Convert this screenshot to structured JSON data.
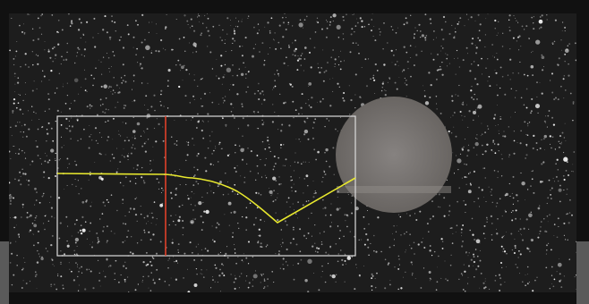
{
  "scene": {
    "description_colors": {
      "background_outer": "#141414",
      "specimen_surface": "#1c1c1c",
      "speckle": "#e6e6e6",
      "hole_fill": "#7b7774",
      "roi_box": "#d9d9d9",
      "cursor_line": "#e0412a",
      "profile_curve": "#e6e62a"
    }
  }
}
